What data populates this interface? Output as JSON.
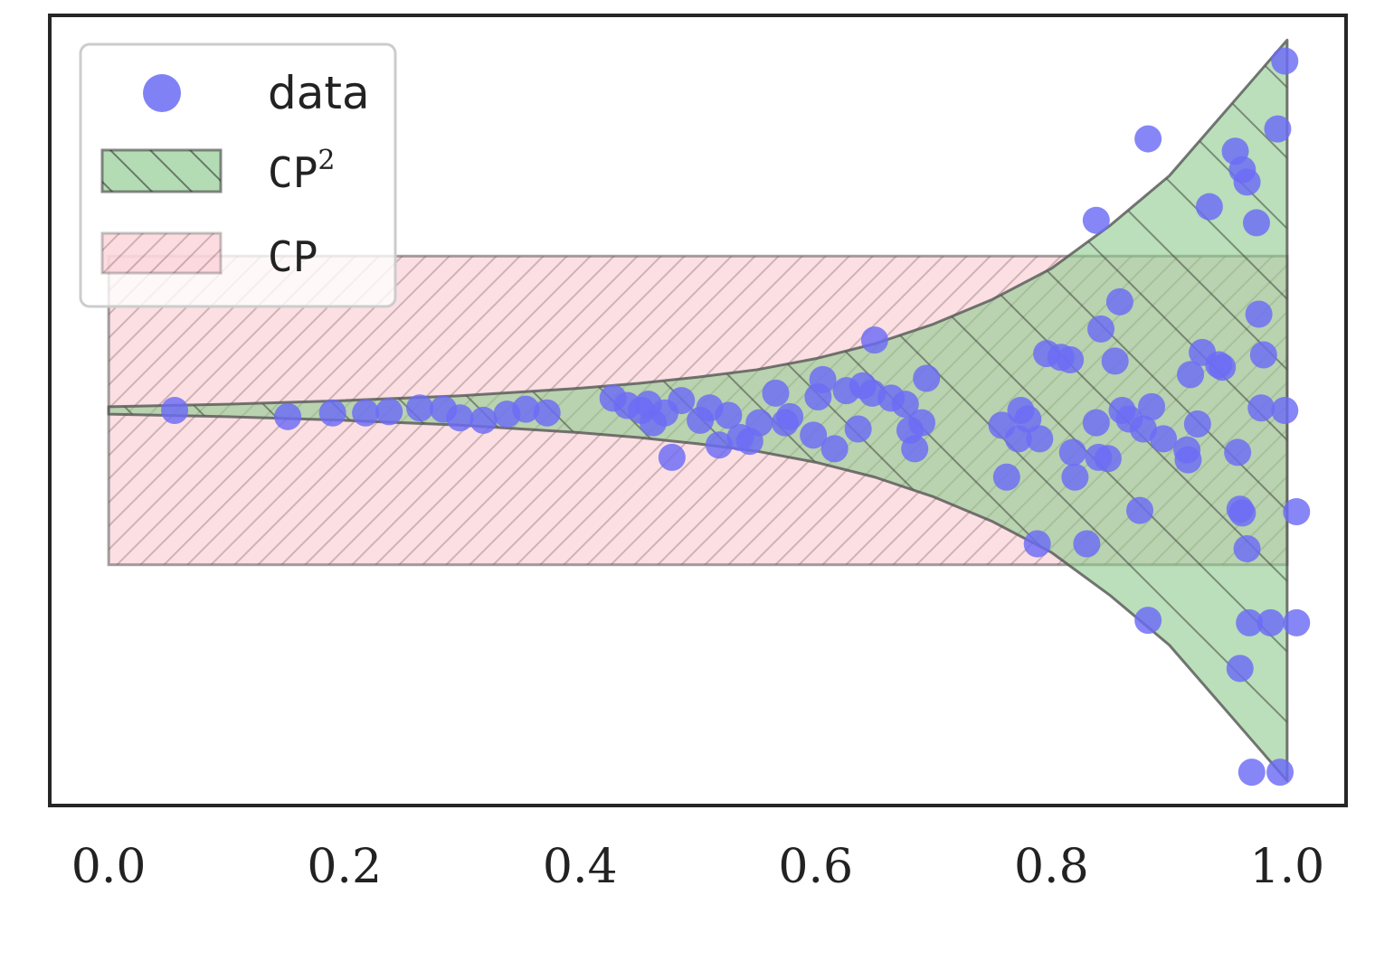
{
  "chart_data": {
    "type": "scatter",
    "title": "",
    "xlabel": "",
    "ylabel": "",
    "xlim": [
      -0.05,
      1.05
    ],
    "ylim": [
      -3.2,
      3.2
    ],
    "x_ticks": [
      "0.0",
      "0.2",
      "0.4",
      "0.6",
      "0.8",
      "1.0"
    ],
    "y_ticks_visible": false,
    "grid": false,
    "legend": {
      "placement": "top-left",
      "entries": [
        {
          "key": "data",
          "label": "data",
          "symbol": "circle",
          "color": "#6b6bf5"
        },
        {
          "key": "cp2",
          "label": "CP",
          "superscript": "2",
          "symbol": "patch",
          "color": "#8cc98c",
          "hatch": "\\"
        },
        {
          "key": "cp",
          "label": "CP",
          "symbol": "patch",
          "color": "#f9c0c8",
          "hatch": "/"
        }
      ]
    },
    "colors": {
      "data": "#6b6bf5",
      "cp2_fill": "#8cc98c",
      "cp_fill": "#f9c0c8",
      "edge": "#555555"
    },
    "cp_band": {
      "x_range": [
        0.0,
        1.0
      ],
      "lower": -1.25,
      "upper": 1.25
    },
    "cp2_band": {
      "x": [
        0.0,
        0.1,
        0.2,
        0.3,
        0.4,
        0.45,
        0.5,
        0.55,
        0.6,
        0.65,
        0.7,
        0.75,
        0.8,
        0.85,
        0.9,
        0.95,
        1.0
      ],
      "lower": [
        -0.03,
        -0.05,
        -0.08,
        -0.12,
        -0.18,
        -0.22,
        -0.27,
        -0.33,
        -0.42,
        -0.54,
        -0.7,
        -0.9,
        -1.15,
        -1.5,
        -1.9,
        -2.45,
        -3.0
      ],
      "upper": [
        0.03,
        0.05,
        0.08,
        0.12,
        0.18,
        0.22,
        0.27,
        0.33,
        0.42,
        0.54,
        0.7,
        0.9,
        1.15,
        1.5,
        1.9,
        2.45,
        3.0
      ]
    },
    "series": [
      {
        "name": "data",
        "points": [
          [
            0.056,
            0.0
          ],
          [
            0.152,
            -0.05
          ],
          [
            0.19,
            -0.02
          ],
          [
            0.218,
            -0.02
          ],
          [
            0.238,
            -0.01
          ],
          [
            0.264,
            0.02
          ],
          [
            0.284,
            0.01
          ],
          [
            0.298,
            -0.06
          ],
          [
            0.318,
            -0.08
          ],
          [
            0.338,
            -0.03
          ],
          [
            0.354,
            0.01
          ],
          [
            0.372,
            -0.02
          ],
          [
            0.428,
            0.1
          ],
          [
            0.44,
            0.04
          ],
          [
            0.452,
            0.0
          ],
          [
            0.458,
            0.05
          ],
          [
            0.462,
            -0.1
          ],
          [
            0.472,
            -0.02
          ],
          [
            0.478,
            -0.38
          ],
          [
            0.486,
            0.08
          ],
          [
            0.502,
            -0.08
          ],
          [
            0.51,
            0.02
          ],
          [
            0.518,
            -0.28
          ],
          [
            0.526,
            -0.04
          ],
          [
            0.536,
            -0.22
          ],
          [
            0.544,
            -0.25
          ],
          [
            0.552,
            -0.1
          ],
          [
            0.566,
            0.14
          ],
          [
            0.574,
            -0.1
          ],
          [
            0.578,
            -0.05
          ],
          [
            0.598,
            -0.2
          ],
          [
            0.602,
            0.11
          ],
          [
            0.606,
            0.25
          ],
          [
            0.616,
            -0.31
          ],
          [
            0.626,
            0.16
          ],
          [
            0.636,
            -0.15
          ],
          [
            0.64,
            0.2
          ],
          [
            0.648,
            0.14
          ],
          [
            0.65,
            0.57
          ],
          [
            0.664,
            0.1
          ],
          [
            0.676,
            0.05
          ],
          [
            0.68,
            -0.16
          ],
          [
            0.684,
            -0.31
          ],
          [
            0.69,
            -0.1
          ],
          [
            0.694,
            0.26
          ],
          [
            0.758,
            -0.12
          ],
          [
            0.762,
            -0.54
          ],
          [
            0.772,
            -0.23
          ],
          [
            0.774,
            0.0
          ],
          [
            0.78,
            -0.07
          ],
          [
            0.79,
            -0.23
          ],
          [
            0.796,
            0.46
          ],
          [
            0.808,
            0.43
          ],
          [
            0.816,
            0.41
          ],
          [
            0.818,
            -0.34
          ],
          [
            0.82,
            -0.54
          ],
          [
            0.83,
            -1.08
          ],
          [
            0.838,
            -0.1
          ],
          [
            0.84,
            -0.38
          ],
          [
            0.842,
            0.66
          ],
          [
            0.848,
            -0.39
          ],
          [
            0.854,
            0.4
          ],
          [
            0.858,
            0.88
          ],
          [
            0.86,
            0.0
          ],
          [
            0.866,
            -0.07
          ],
          [
            0.875,
            -0.81
          ],
          [
            0.878,
            -0.15
          ],
          [
            0.885,
            0.03
          ],
          [
            0.895,
            -0.23
          ],
          [
            0.915,
            -0.32
          ],
          [
            0.916,
            -0.4
          ],
          [
            0.918,
            0.29
          ],
          [
            0.924,
            -0.11
          ],
          [
            0.928,
            0.47
          ],
          [
            0.838,
            1.54
          ],
          [
            0.942,
            0.37
          ],
          [
            0.945,
            0.35
          ],
          [
            0.958,
            -0.34
          ],
          [
            0.96,
            -0.8
          ],
          [
            0.962,
            -0.83
          ],
          [
            0.966,
            -1.12
          ],
          [
            0.976,
            0.78
          ],
          [
            0.978,
            0.02
          ],
          [
            0.98,
            0.45
          ],
          [
            0.992,
            2.28
          ],
          [
            0.882,
            2.2
          ],
          [
            0.882,
            -1.7
          ],
          [
            0.934,
            1.65
          ],
          [
            0.956,
            2.1
          ],
          [
            0.962,
            1.95
          ],
          [
            0.966,
            1.85
          ],
          [
            0.974,
            1.52
          ],
          [
            0.968,
            -1.72
          ],
          [
            0.96,
            -2.09
          ],
          [
            0.986,
            -1.72
          ],
          [
            0.97,
            -2.93
          ],
          [
            0.998,
            0.0
          ],
          [
            1.008,
            -0.82
          ],
          [
            1.008,
            -1.72
          ],
          [
            0.994,
            -2.93
          ],
          [
            0.998,
            2.83
          ],
          [
            0.788,
            -1.08
          ]
        ]
      }
    ]
  }
}
